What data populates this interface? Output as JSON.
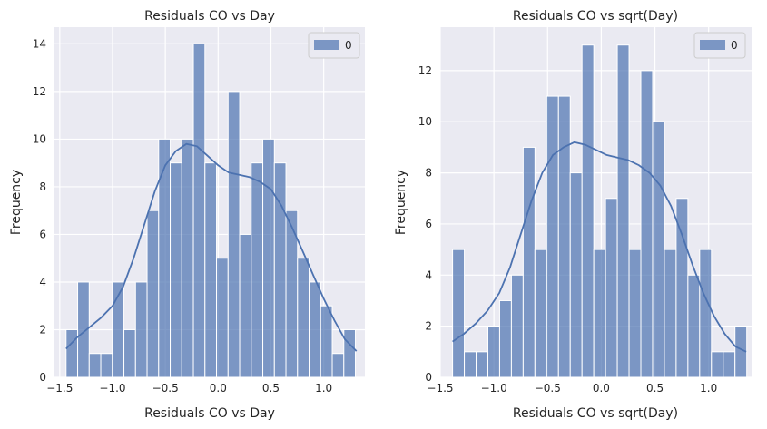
{
  "chart_data": [
    {
      "type": "bar",
      "title": "Residuals CO vs Day",
      "xlabel": "Residuals CO vs Day",
      "ylabel": "Frequency",
      "xlim": [
        -1.55,
        1.39
      ],
      "ylim": [
        0,
        14.7
      ],
      "xticks": [
        -1.5,
        -1.0,
        -0.5,
        0.0,
        0.5,
        1.0
      ],
      "xtick_labels": [
        "−1.5",
        "−1.0",
        "−0.5",
        "0.0",
        "0.5",
        "1.0"
      ],
      "yticks": [
        0,
        2,
        4,
        6,
        8,
        10,
        12,
        14
      ],
      "ytick_labels": [
        "0",
        "2",
        "4",
        "6",
        "8",
        "10",
        "12",
        "14"
      ],
      "bin_start": -1.44,
      "bin_width": 0.1096,
      "counts": [
        2,
        4,
        1,
        1,
        4,
        2,
        4,
        7,
        10,
        9,
        10,
        14,
        9,
        5,
        12,
        6,
        9,
        10,
        9,
        7,
        5,
        4,
        3,
        1,
        2
      ],
      "kde": {
        "x": [
          -1.44,
          -1.33,
          -1.22,
          -1.11,
          -1.0,
          -0.9,
          -0.8,
          -0.7,
          -0.6,
          -0.5,
          -0.4,
          -0.3,
          -0.2,
          -0.1,
          0.0,
          0.1,
          0.2,
          0.3,
          0.4,
          0.5,
          0.6,
          0.7,
          0.8,
          0.9,
          1.0,
          1.1,
          1.2,
          1.31
        ],
        "y": [
          1.2,
          1.7,
          2.1,
          2.5,
          3.0,
          3.8,
          5.0,
          6.4,
          7.8,
          8.9,
          9.5,
          9.8,
          9.7,
          9.3,
          8.9,
          8.6,
          8.5,
          8.4,
          8.2,
          7.9,
          7.2,
          6.3,
          5.3,
          4.3,
          3.3,
          2.4,
          1.6,
          1.1
        ]
      },
      "legend": [
        "0"
      ],
      "legend_position": "top-right",
      "colors": {
        "bar": "#4c72b0",
        "line": "#4c72b0"
      }
    },
    {
      "type": "bar",
      "title": "Residuals CO vs sqrt(Day)",
      "xlabel": "Residuals CO vs sqrt(Day)",
      "ylabel": "Frequency",
      "xlim": [
        -1.5,
        1.4
      ],
      "ylim": [
        0,
        13.7
      ],
      "xticks": [
        -1.5,
        -1.0,
        -0.5,
        0.0,
        0.5,
        1.0
      ],
      "xtick_labels": [
        "−1.5",
        "−1.0",
        "−0.5",
        "0.0",
        "0.5",
        "1.0"
      ],
      "yticks": [
        0,
        2,
        4,
        6,
        8,
        10,
        12
      ],
      "ytick_labels": [
        "0",
        "2",
        "4",
        "6",
        "8",
        "10",
        "12"
      ],
      "bin_start": -1.385,
      "bin_width": 0.1096,
      "counts": [
        5,
        1,
        1,
        2,
        3,
        4,
        9,
        5,
        11,
        11,
        8,
        13,
        5,
        7,
        13,
        5,
        12,
        10,
        5,
        7,
        4,
        5,
        1,
        1,
        2
      ],
      "kde": {
        "x": [
          -1.385,
          -1.28,
          -1.17,
          -1.06,
          -0.95,
          -0.85,
          -0.75,
          -0.65,
          -0.55,
          -0.45,
          -0.35,
          -0.25,
          -0.15,
          -0.05,
          0.05,
          0.15,
          0.25,
          0.35,
          0.45,
          0.55,
          0.65,
          0.75,
          0.85,
          0.95,
          1.05,
          1.15,
          1.25,
          1.35
        ],
        "y": [
          1.4,
          1.7,
          2.1,
          2.6,
          3.3,
          4.3,
          5.6,
          6.9,
          8.0,
          8.7,
          9.0,
          9.2,
          9.1,
          8.9,
          8.7,
          8.6,
          8.5,
          8.3,
          8.0,
          7.5,
          6.7,
          5.6,
          4.4,
          3.3,
          2.4,
          1.7,
          1.2,
          1.0
        ]
      },
      "legend": [
        "0"
      ],
      "legend_position": "top-right",
      "colors": {
        "bar": "#4c72b0",
        "line": "#4c72b0"
      }
    }
  ]
}
